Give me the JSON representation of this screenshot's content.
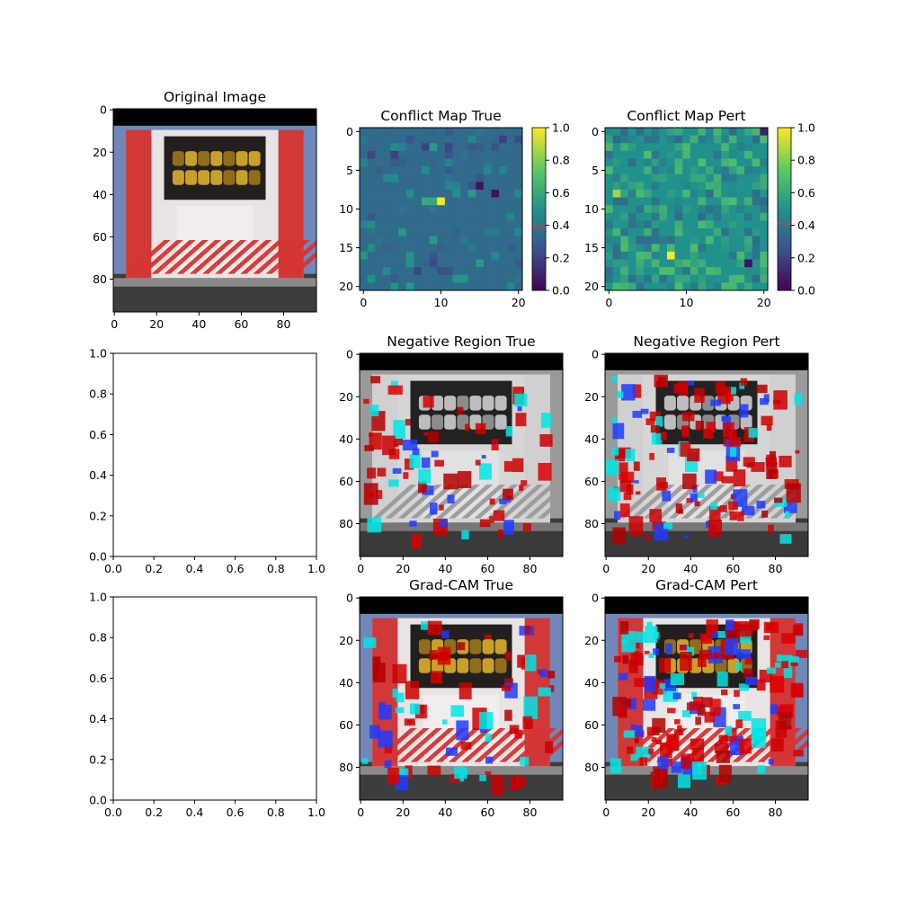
{
  "figure": {
    "background": "#ffffff"
  },
  "chart_data": [
    {
      "type": "heatmap",
      "title": "Original Image",
      "image": "photo of the rear of a fire truck (red/white chevrons, yellow hoses)",
      "xlim": [
        0,
        96
      ],
      "ylim": [
        96,
        0
      ],
      "xticks": [
        "0",
        "20",
        "40",
        "60",
        "80"
      ],
      "yticks": [
        "0",
        "20",
        "40",
        "60",
        "80"
      ]
    },
    {
      "type": "heatmap",
      "title": "Conflict Map True",
      "grid": [
        21,
        21
      ],
      "colormap": "viridis",
      "clim": [
        0,
        1
      ],
      "background_value": 0.35,
      "colorbar_marker": 0.39,
      "colorbar_ticks": [
        "0.0",
        "0.2",
        "0.4",
        "0.6",
        "0.8",
        "1.0"
      ],
      "xticks": [
        "0",
        "10",
        "20"
      ],
      "yticks": [
        "0",
        "5",
        "10",
        "15",
        "20"
      ],
      "notable_cells": [
        {
          "row": 9,
          "col": 10,
          "value": 1.0
        },
        {
          "row": 7,
          "col": 15,
          "value": 0.05
        },
        {
          "row": 8,
          "col": 17,
          "value": 0.05
        },
        {
          "row": 9,
          "col": 8,
          "value": 0.6
        },
        {
          "row": 9,
          "col": 9,
          "value": 0.6
        }
      ]
    },
    {
      "type": "heatmap",
      "title": "Conflict Map Pert",
      "grid": [
        21,
        21
      ],
      "colormap": "viridis",
      "clim": [
        0,
        1
      ],
      "background_value": 0.5,
      "colorbar_marker": 0.41,
      "colorbar_ticks": [
        "0.0",
        "0.2",
        "0.4",
        "0.6",
        "0.8",
        "1.0"
      ],
      "xticks": [
        "0",
        "10",
        "20"
      ],
      "yticks": [
        "0",
        "5",
        "10",
        "15",
        "20"
      ],
      "notable_cells": [
        {
          "row": 16,
          "col": 8,
          "value": 1.0
        },
        {
          "row": 8,
          "col": 1,
          "value": 0.85
        },
        {
          "row": 17,
          "col": 18,
          "value": 0.05
        },
        {
          "row": 0,
          "col": 20,
          "value": 0.1
        }
      ]
    },
    {
      "type": "scatter",
      "title": "",
      "xlim": [
        0,
        1
      ],
      "ylim": [
        0,
        1
      ],
      "xticks": [
        "0.0",
        "0.2",
        "0.4",
        "0.6",
        "0.8",
        "1.0"
      ],
      "yticks": [
        "0.0",
        "0.2",
        "0.4",
        "0.6",
        "0.8",
        "1.0"
      ],
      "series": []
    },
    {
      "type": "heatmap",
      "title": "Negative Region True",
      "image": "grayscale fire truck with red/blue/cyan overlay",
      "xticks": [
        "0",
        "20",
        "40",
        "60",
        "80"
      ],
      "yticks": [
        "0",
        "20",
        "40",
        "60",
        "80"
      ]
    },
    {
      "type": "heatmap",
      "title": "Negative Region Pert",
      "image": "grayscale fire truck with red/blue/cyan overlay",
      "xticks": [
        "0",
        "20",
        "40",
        "60",
        "80"
      ],
      "yticks": [
        "0",
        "20",
        "40",
        "60",
        "80"
      ]
    },
    {
      "type": "scatter",
      "title": "",
      "xlim": [
        0,
        1
      ],
      "ylim": [
        0,
        1
      ],
      "xticks": [
        "0.0",
        "0.2",
        "0.4",
        "0.6",
        "0.8",
        "1.0"
      ],
      "yticks": [
        "0.0",
        "0.2",
        "0.4",
        "0.6",
        "0.8",
        "1.0"
      ],
      "series": []
    },
    {
      "type": "heatmap",
      "title": "Grad-CAM True",
      "image": "fire truck with Grad-CAM red/blue/cyan overlay",
      "xticks": [
        "0",
        "20",
        "40",
        "60",
        "80"
      ],
      "yticks": [
        "0",
        "20",
        "40",
        "60",
        "80"
      ]
    },
    {
      "type": "heatmap",
      "title": "Grad-CAM Pert",
      "image": "fire truck with Grad-CAM red/blue/cyan overlay",
      "xticks": [
        "0",
        "20",
        "40",
        "60",
        "80"
      ],
      "yticks": [
        "0",
        "20",
        "40",
        "60",
        "80"
      ]
    }
  ]
}
